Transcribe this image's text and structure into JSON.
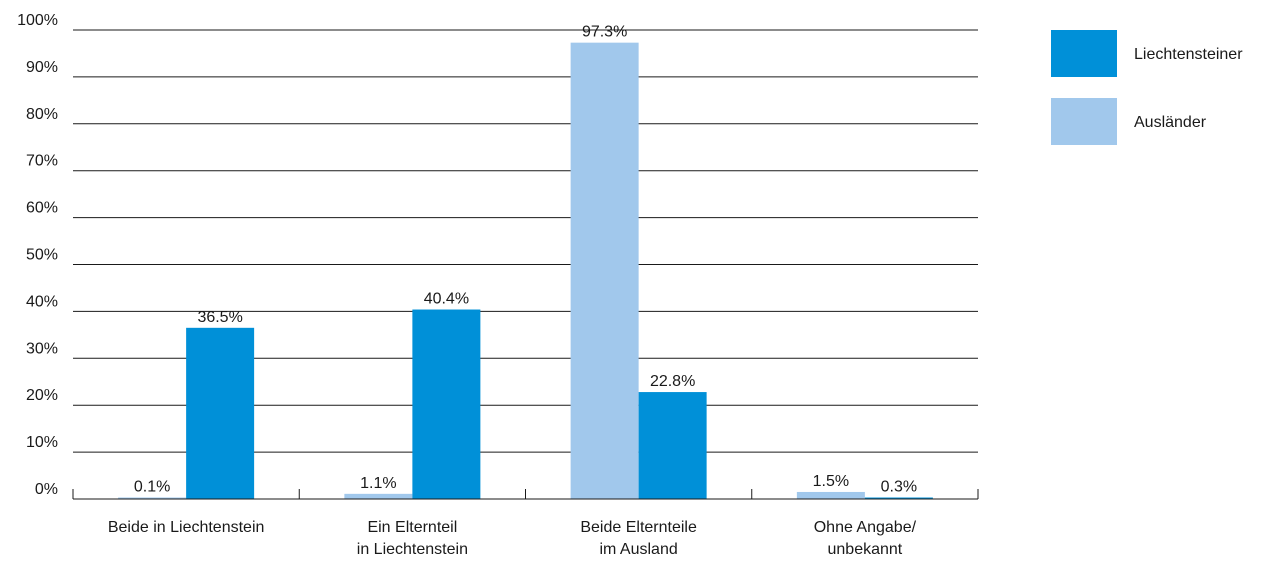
{
  "chart_data": {
    "type": "bar",
    "title": "",
    "xlabel": "",
    "ylabel": "",
    "ylim": [
      0,
      100
    ],
    "yticks": [
      "0%",
      "10%",
      "20%",
      "30%",
      "40%",
      "50%",
      "60%",
      "70%",
      "80%",
      "90%",
      "100%"
    ],
    "grid": true,
    "legend_position": "top-right",
    "categories": [
      [
        "Beide in Liechtenstein"
      ],
      [
        "Ein Elternteil",
        "in Liechtenstein"
      ],
      [
        "Beide Elternteile",
        "im Ausland"
      ],
      [
        "Ohne Angabe/",
        "unbekannt"
      ]
    ],
    "series": [
      {
        "name": "Ausländer",
        "color": "#a1c8ec",
        "values": [
          0.1,
          1.1,
          97.3,
          1.5
        ],
        "labels": [
          "0.1%",
          "1.1%",
          "97.3%",
          "1.5%"
        ]
      },
      {
        "name": "Liechtensteiner",
        "color": "#0090d8",
        "values": [
          36.5,
          40.4,
          22.8,
          0.3
        ],
        "labels": [
          "36.5%",
          "40.4%",
          "22.8%",
          "0.3%"
        ]
      }
    ],
    "legend_order": [
      1,
      0
    ]
  }
}
